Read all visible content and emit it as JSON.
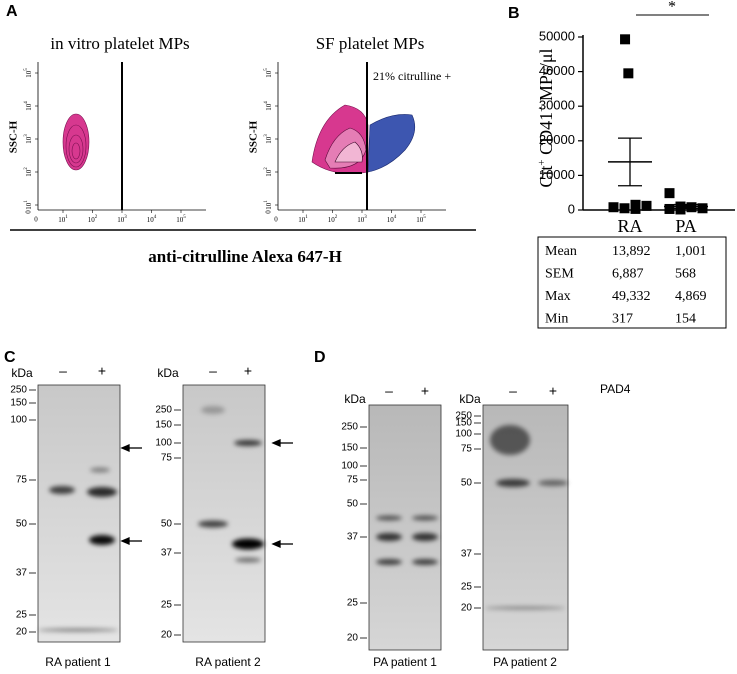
{
  "panel_labels": [
    "A",
    "B",
    "C",
    "D"
  ],
  "flow": {
    "plots": [
      {
        "title": "in vitro platelet MPs",
        "y_label": "SSC-H"
      },
      {
        "title": "SF platelet MPs",
        "y_label": "SSC-H",
        "annotation": "21% citrulline +"
      }
    ],
    "tick_zero": "0",
    "tick_base": "10",
    "tick_exponents": [
      "1",
      "2",
      "3",
      "4",
      "5"
    ],
    "x_label": "anti-citrulline Alexa 647-H"
  },
  "chart_data": {
    "type": "scatter",
    "y_label_parts": [
      "Cit",
      "+",
      " CD41",
      "+",
      " MPs/μl"
    ],
    "categories": [
      "RA",
      "PA"
    ],
    "points": [
      [
        49332,
        39500,
        1500,
        1200,
        800,
        500,
        317
      ],
      [
        4869,
        1000,
        800,
        500,
        300,
        154
      ]
    ],
    "means": [
      13892,
      1001
    ],
    "sems": [
      6887,
      568
    ],
    "ylim": [
      0,
      50000
    ],
    "yticks": [
      0,
      10000,
      20000,
      30000,
      40000,
      50000
    ],
    "significance": "*",
    "color": "#000000"
  },
  "table": {
    "row_labels": [
      "Mean",
      "SEM",
      "Max",
      "Min"
    ],
    "rows": [
      [
        "13,892",
        "1,001"
      ],
      [
        "6,887",
        "568"
      ],
      [
        "49,332",
        "4,869"
      ],
      [
        "317",
        "154"
      ]
    ]
  },
  "blots": [
    {
      "kda": "kDa",
      "lanes": [
        "–",
        "+"
      ],
      "markers": [
        250,
        150,
        100,
        75,
        50,
        37,
        25,
        20
      ],
      "caption": "RA patient 1"
    },
    {
      "kda": "kDa",
      "lanes": [
        "–",
        "+"
      ],
      "markers": [
        250,
        150,
        100,
        75,
        50,
        37,
        25,
        20
      ],
      "caption": "RA patient 2"
    },
    {
      "kda": "kDa",
      "lanes": [
        "–",
        "+"
      ],
      "markers": [
        250,
        150,
        100,
        75,
        50,
        37,
        25,
        20
      ],
      "caption": "PA patient 1"
    },
    {
      "kda": "kDa",
      "lanes": [
        "–",
        "+"
      ],
      "markers": [
        250,
        150,
        100,
        75,
        50,
        37,
        25,
        20
      ],
      "caption": "PA patient 2"
    }
  ],
  "treatment": "PAD4"
}
